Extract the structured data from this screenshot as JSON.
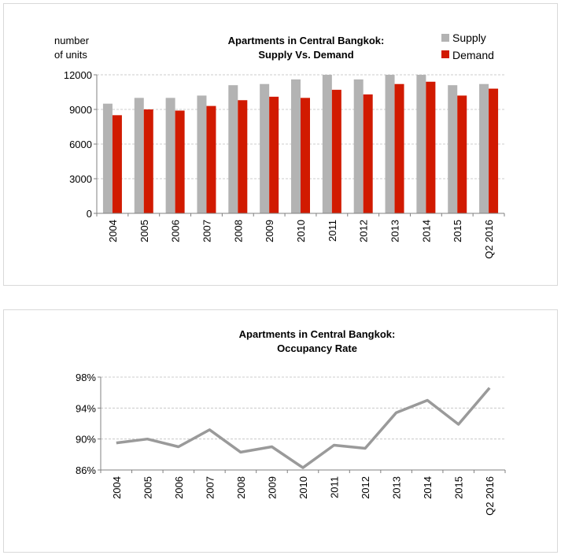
{
  "charts": [
    {
      "type": "bar",
      "title_line1": "Apartments in Central Bangkok:",
      "title_line2": "Supply Vs. Demand",
      "ylabel_line1": "number",
      "ylabel_line2": "of units",
      "categories": [
        "2004",
        "2005",
        "2006",
        "2007",
        "2008",
        "2009",
        "2010",
        "2011",
        "2012",
        "2013",
        "2014",
        "2015",
        "Q2 2016"
      ],
      "yticks": [
        0,
        3000,
        6000,
        9000,
        12000
      ],
      "ylim": [
        0,
        12000
      ],
      "legend_position": "top-right",
      "grid": true,
      "series": [
        {
          "name": "Supply",
          "color": "#b3b3b3",
          "values": [
            9500,
            10000,
            10000,
            10200,
            11100,
            11200,
            11600,
            12000,
            11600,
            12000,
            12000,
            11100,
            11200
          ]
        },
        {
          "name": "Demand",
          "color": "#d11a00",
          "values": [
            8500,
            9000,
            8900,
            9300,
            9800,
            10100,
            10000,
            10700,
            10300,
            11200,
            11400,
            10200,
            10800
          ]
        }
      ]
    },
    {
      "type": "line",
      "title_line1": "Apartments in Central Bangkok:",
      "title_line2": "Occupancy Rate",
      "categories": [
        "2004",
        "2005",
        "2006",
        "2007",
        "2008",
        "2009",
        "2010",
        "2011",
        "2012",
        "2013",
        "2014",
        "2015",
        "Q2 2016"
      ],
      "yticks": [
        86,
        90,
        94,
        98
      ],
      "ytick_labels": [
        "86%",
        "90%",
        "94%",
        "98%"
      ],
      "ylim": [
        86,
        98
      ],
      "grid": true,
      "series": [
        {
          "color": "#9a9a9a",
          "values": [
            89.5,
            90.0,
            89.0,
            91.2,
            88.3,
            89.0,
            86.3,
            89.2,
            88.8,
            93.4,
            95.0,
            91.9,
            96.6
          ]
        }
      ]
    }
  ]
}
